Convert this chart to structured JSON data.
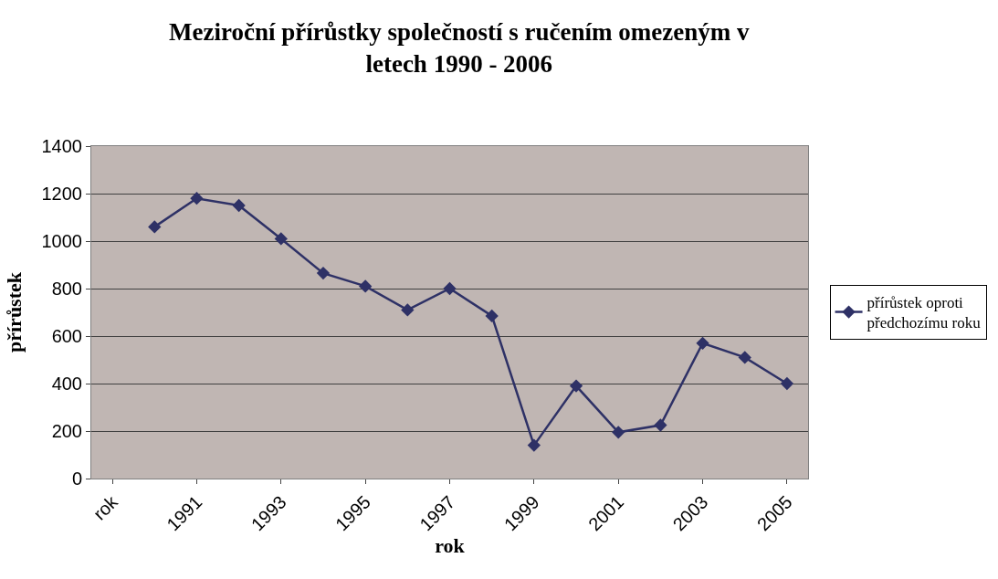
{
  "chart_data": {
    "type": "line",
    "title": "Meziroční přírůstky společností s ručením omezeným v letech 1990 - 2006",
    "xlabel": "rok",
    "ylabel": "přírůstek",
    "categories": [
      "rok",
      null,
      "1991",
      null,
      "1993",
      null,
      "1995",
      null,
      "1997",
      null,
      "1999",
      null,
      "2001",
      null,
      "2003",
      null,
      "2005"
    ],
    "series": [
      {
        "name": "přírůstek oproti předchozímu roku",
        "color": "#2e3166",
        "values": [
          null,
          1060,
          1180,
          1150,
          1010,
          865,
          810,
          710,
          800,
          685,
          140,
          390,
          195,
          225,
          570,
          510,
          400
        ]
      }
    ],
    "ylim": [
      0,
      1400
    ],
    "yticks": [
      0,
      200,
      400,
      600,
      800,
      1000,
      1200,
      1400
    ],
    "grid": "y",
    "legend": "right",
    "marker": "diamond",
    "line_style": "solid"
  }
}
